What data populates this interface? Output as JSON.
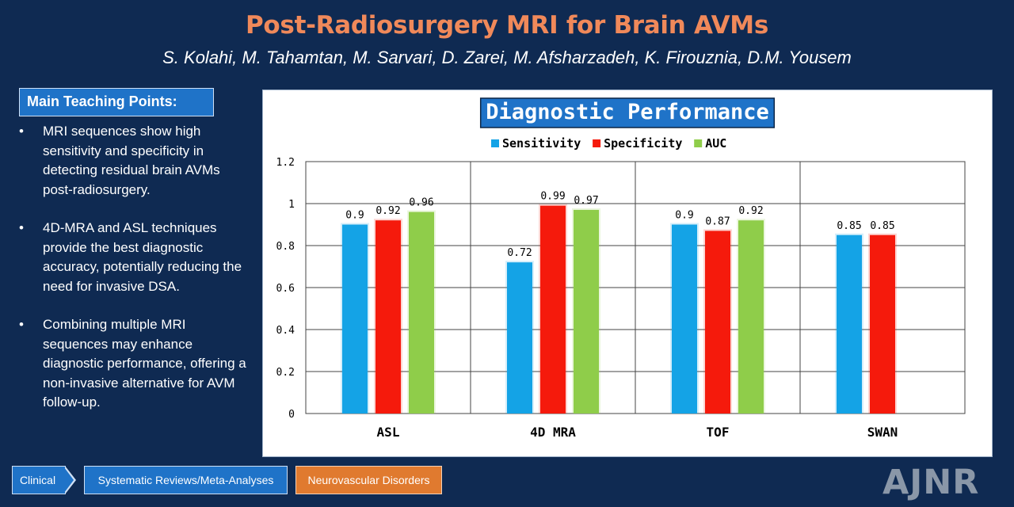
{
  "header": {
    "title": "Post-Radiosurgery MRI for Brain AVMs",
    "authors": "S. Kolahi, M. Tahamtan, M. Sarvari, D. Zarei, M. Afsharzadeh, K. Firouznia, D.M. Yousem"
  },
  "sidebar": {
    "heading": "Main Teaching Points:",
    "bullet_char": "•",
    "points": [
      "MRI sequences show high sensitivity and specificity in detecting residual brain AVMs post-radiosurgery.",
      "4D-MRA and ASL techniques provide the best diagnostic accuracy, potentially reducing the need for invasive DSA.",
      "Combining multiple MRI sequences may enhance diagnostic performance, offering a non-invasive alternative for AVM follow-up."
    ]
  },
  "chart_data": {
    "type": "bar",
    "title": "Diagnostic Performance",
    "title_bg": "#1f73c8",
    "categories": [
      "ASL",
      "4D MRA",
      "TOF",
      "SWAN"
    ],
    "series": [
      {
        "name": "Sensitivity",
        "color": "#14a3e6",
        "values": [
          0.9,
          0.72,
          0.9,
          0.85
        ]
      },
      {
        "name": "Specificity",
        "color": "#f51a0c",
        "values": [
          0.92,
          0.99,
          0.87,
          0.85
        ]
      },
      {
        "name": "AUC",
        "color": "#8fcd4a",
        "values": [
          0.96,
          0.97,
          0.92,
          null
        ]
      }
    ],
    "ylim": [
      0,
      1.2
    ],
    "yticks": [
      "0",
      "0.2",
      "0.4",
      "0.6",
      "0.8",
      "1",
      "1.2"
    ],
    "data_labels": [
      [
        "0.9",
        "0.92",
        "0.96"
      ],
      [
        "0.72",
        "0.99",
        "0.97"
      ],
      [
        "0.9",
        "0.87",
        "0.92"
      ],
      [
        "0.85",
        "0.85",
        null
      ]
    ],
    "grid": true,
    "legend": "top-center"
  },
  "footer": {
    "tags": [
      "Clinical",
      "Systematic Reviews/Meta-Analyses",
      "Neurovascular Disorders"
    ],
    "brand": "AJNR"
  }
}
